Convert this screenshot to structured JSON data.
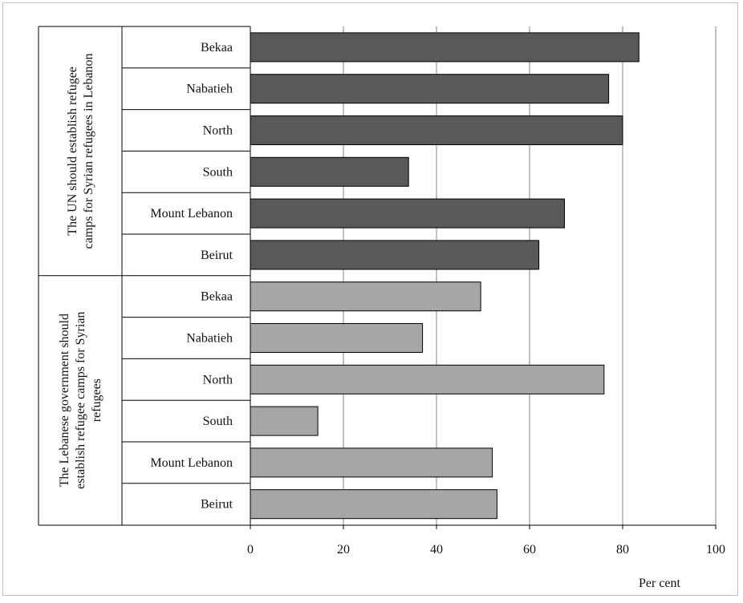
{
  "chart_data": {
    "type": "bar",
    "orientation": "horizontal",
    "xlabel": "Per cent",
    "xlim": [
      0,
      100
    ],
    "x_ticks": [
      0,
      20,
      40,
      60,
      80,
      100
    ],
    "grid": "vertical",
    "colors": {
      "un": "#595959",
      "gov": "#a6a6a6",
      "border": "#000000",
      "grid": "#808080"
    },
    "groups": [
      {
        "label_lines": [
          "The UN should establish refugee",
          "camps for Syrian refugees in Lebanon"
        ],
        "color": "#595959",
        "categories": [
          "Bekaa",
          "Nabatieh",
          "North",
          "South",
          "Mount Lebanon",
          "Beirut"
        ],
        "values": [
          83.5,
          77,
          80,
          34,
          67.5,
          62
        ]
      },
      {
        "label_lines": [
          "The Lebanese government should",
          "establish refugee camps for Syrian",
          "refugees"
        ],
        "color": "#a6a6a6",
        "categories": [
          "Bekaa",
          "Nabatieh",
          "North",
          "South",
          "Mount Lebanon",
          "Beirut"
        ],
        "values": [
          49.5,
          37,
          76,
          14.5,
          52,
          53
        ]
      }
    ]
  }
}
